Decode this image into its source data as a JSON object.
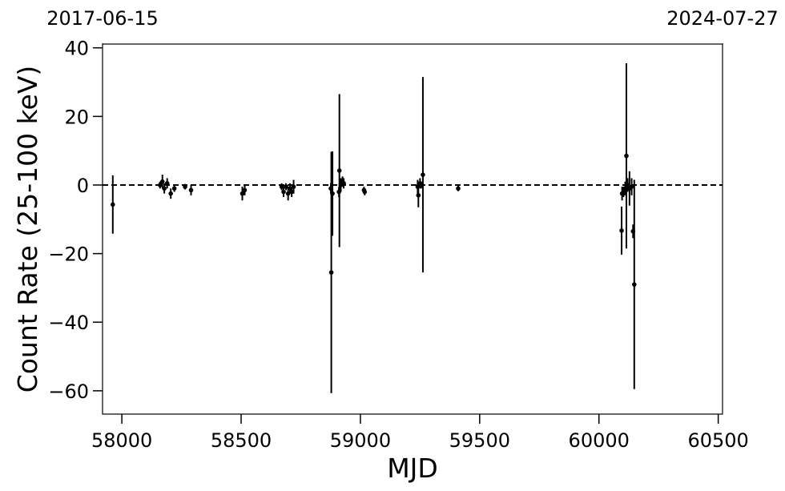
{
  "chart_data": {
    "type": "errorbar",
    "xlabel": "MJD",
    "ylabel": "Count Rate (25-100 keV)",
    "xlim": [
      57919,
      60518
    ],
    "ylim": [
      -66.8,
      41.1
    ],
    "xticks": [
      58000,
      58500,
      59000,
      59500,
      60000,
      60500
    ],
    "yticks": [
      {
        "value": -60,
        "label": "−60"
      },
      {
        "value": -40,
        "label": "−40"
      },
      {
        "value": -20,
        "label": "−20"
      },
      0,
      20,
      40
    ],
    "top_ticks": [
      {
        "value": 57919,
        "label": "2017-06-15"
      },
      {
        "value": 60518,
        "label": "2024-07-27"
      }
    ],
    "hline": 0,
    "color": "#000000",
    "x": [
      57962,
      58160,
      58170,
      58178,
      58190,
      58205,
      58220,
      58265,
      58290,
      58505,
      58515,
      58670,
      58678,
      58688,
      58697,
      58705,
      58712,
      58720,
      58876,
      58878,
      58883,
      58910,
      58912,
      58918,
      58925,
      58930,
      59015,
      59018,
      59240,
      59243,
      59250,
      59255,
      59262,
      59410,
      60095,
      60097,
      60103,
      60110,
      60115,
      60120,
      60128,
      60137,
      60143,
      60148
    ],
    "y": [
      -5.7,
      0,
      1,
      -1,
      0.5,
      -2.5,
      -1,
      -0.5,
      -1.5,
      -2.5,
      -1.5,
      -0.5,
      -2,
      -0.5,
      -2.5,
      -1,
      -2,
      -0.5,
      -1,
      -25.5,
      -2.5,
      -2,
      4.2,
      0,
      1,
      0.5,
      -1.5,
      -2,
      -0.5,
      -3,
      0.5,
      0,
      3,
      -1,
      -13.3,
      -2.5,
      -2,
      -1,
      8.5,
      0,
      -1,
      -0.5,
      -13.5,
      -29
    ],
    "yerr": [
      8.5,
      1,
      2,
      1.5,
      1.5,
      1.5,
      1,
      0.8,
      1.5,
      2,
      1.5,
      1,
      1.5,
      1,
      2,
      1.5,
      1.5,
      2,
      1.5,
      35.2,
      12.3,
      1.5,
      22.3,
      2,
      1.5,
      1.5,
      1,
      1,
      2,
      3.5,
      1.5,
      1,
      28.5,
      0.8,
      7,
      2,
      1.5,
      2,
      27,
      2,
      5,
      2.5,
      2,
      30.5
    ]
  }
}
